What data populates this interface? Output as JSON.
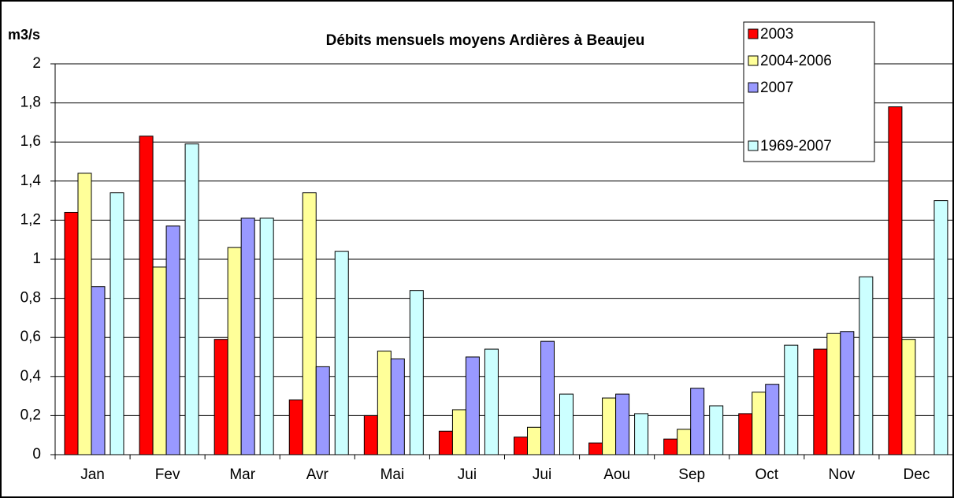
{
  "chart_data": {
    "type": "bar",
    "title": "Débits mensuels moyens Ardières à Beaujeu",
    "y_label": "m3/s",
    "categories": [
      "Jan",
      "Fev",
      "Mar",
      "Avr",
      "Mai",
      "Jui",
      "Jui",
      "Aou",
      "Sep",
      "Oct",
      "Nov",
      "Dec"
    ],
    "series": [
      {
        "name": "2003",
        "color": "#ff0000",
        "values": [
          1.24,
          1.63,
          0.59,
          0.28,
          0.2,
          0.12,
          0.09,
          0.06,
          0.08,
          0.21,
          0.54,
          1.78
        ]
      },
      {
        "name": "2004-2006",
        "color": "#ffff99",
        "values": [
          1.44,
          0.96,
          1.06,
          1.34,
          0.53,
          0.23,
          0.14,
          0.29,
          0.13,
          0.32,
          0.62,
          0.59
        ]
      },
      {
        "name": "2007",
        "color": "#9999ff",
        "values": [
          0.86,
          1.17,
          1.21,
          0.45,
          0.49,
          0.5,
          0.58,
          0.31,
          0.34,
          0.36,
          0.63,
          null
        ]
      },
      {
        "name": "1969-2007",
        "color": "#ccffff",
        "values": [
          1.34,
          1.59,
          1.21,
          1.04,
          0.84,
          0.54,
          0.31,
          0.21,
          0.25,
          0.56,
          0.91,
          1.3
        ]
      }
    ],
    "ylim": [
      0,
      2
    ],
    "yticks": [
      0,
      {
        "value": 0.2,
        "label": "0,2"
      },
      {
        "value": 0.4,
        "label": "0,4"
      },
      {
        "value": 0.6,
        "label": "0,6"
      },
      {
        "value": 0.8,
        "label": "0,8"
      },
      1,
      {
        "value": 1.2,
        "label": "1,2"
      },
      {
        "value": 1.4,
        "label": "1,4"
      },
      {
        "value": 1.6,
        "label": "1,6"
      },
      {
        "value": 1.8,
        "label": "1,8"
      },
      2
    ],
    "grid": true,
    "legend": "upper right"
  }
}
